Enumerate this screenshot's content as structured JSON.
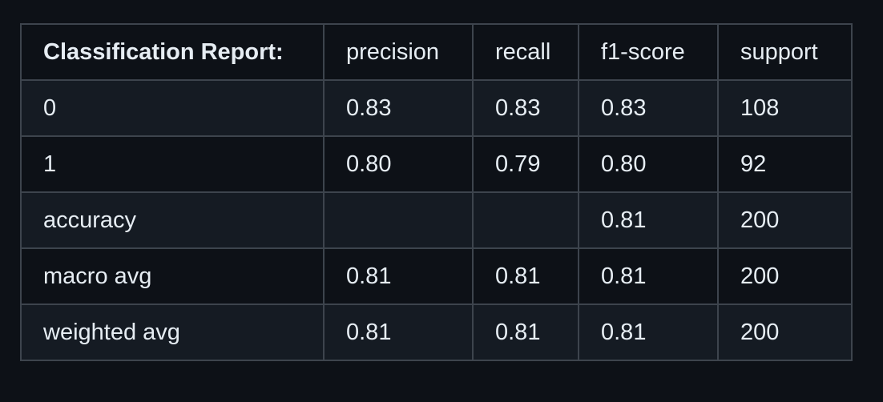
{
  "table": {
    "headers": [
      "Classification Report:",
      "precision",
      "recall",
      "f1-score",
      "support"
    ],
    "rows": [
      [
        "0",
        "0.83",
        "0.83",
        "0.83",
        "108"
      ],
      [
        "1",
        "0.80",
        "0.79",
        "0.80",
        "92"
      ],
      [
        "accuracy",
        "",
        "",
        "0.81",
        "200"
      ],
      [
        "macro avg",
        "0.81",
        "0.81",
        "0.81",
        "200"
      ],
      [
        "weighted avg",
        "0.81",
        "0.81",
        "0.81",
        "200"
      ]
    ]
  },
  "colors": {
    "background": "#0d1117",
    "row_alt": "#151b23",
    "border": "#3d444d",
    "text": "#e6edf3"
  }
}
